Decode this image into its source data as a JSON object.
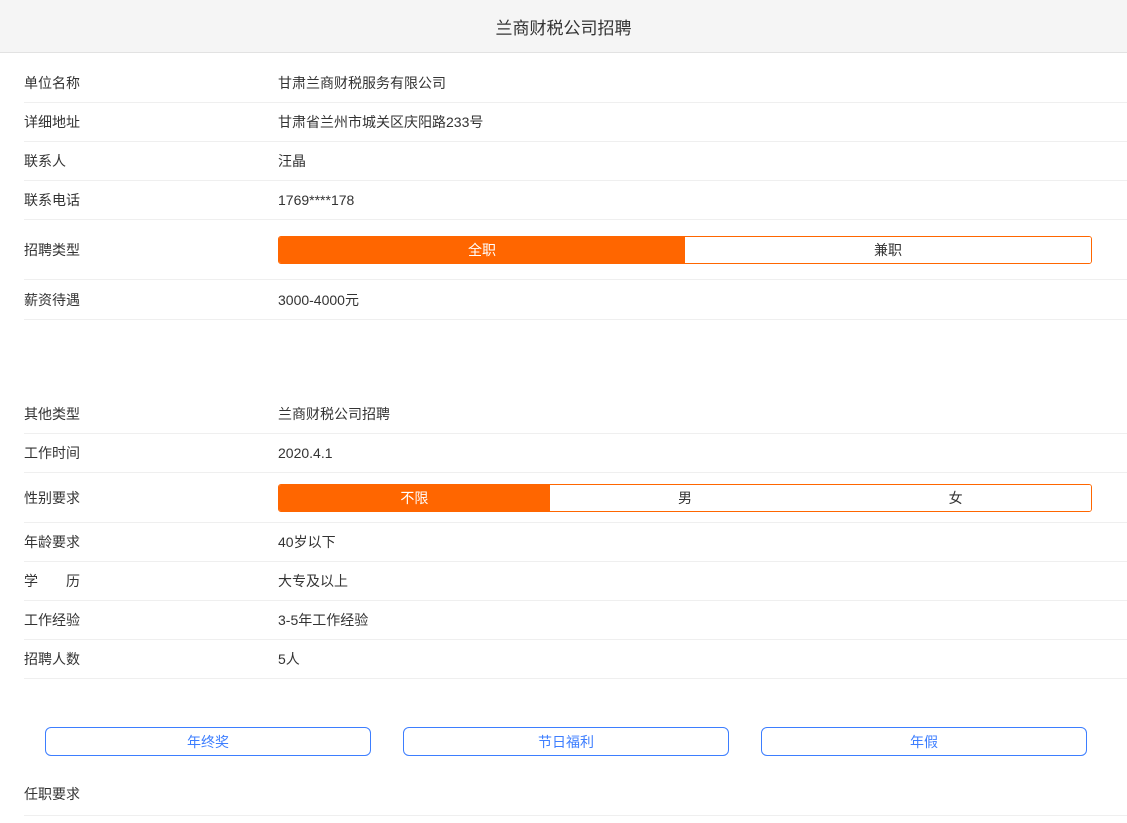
{
  "header": {
    "title": "兰商财税公司招聘"
  },
  "colors": {
    "accent_orange": "#FF6600",
    "accent_blue": "#3D7EFF"
  },
  "company": {
    "rows": [
      {
        "label": "单位名称",
        "value": "甘肃兰商财税服务有限公司"
      },
      {
        "label": "详细地址",
        "value": "甘肃省兰州市城关区庆阳路233号"
      },
      {
        "label": "联系人",
        "value": "汪晶"
      },
      {
        "label": "联系电话",
        "value": "1769****178"
      }
    ]
  },
  "job": {
    "type_row": {
      "label": "招聘类型",
      "options": [
        {
          "label": "全职",
          "selected": true
        },
        {
          "label": "兼职",
          "selected": false
        }
      ]
    },
    "salary_row": {
      "label": "薪资待遇",
      "value": "3000-4000元"
    }
  },
  "detail": {
    "other_type_row": {
      "label": "其他类型",
      "value": "兰商财税公司招聘"
    },
    "work_time_row": {
      "label": "工作时间",
      "value": "2020.4.1"
    },
    "gender_row": {
      "label": "性别要求",
      "options": [
        {
          "label": "不限",
          "selected": true
        },
        {
          "label": "男",
          "selected": false
        },
        {
          "label": "女",
          "selected": false
        }
      ]
    },
    "age_row": {
      "label": "年龄要求",
      "value": "40岁以下"
    },
    "education_row": {
      "label": "学　　历",
      "value": "大专及以上"
    },
    "experience_row": {
      "label": "工作经验",
      "value": "3-5年工作经验"
    },
    "headcount_row": {
      "label": "招聘人数",
      "value": "5人"
    }
  },
  "benefits": {
    "items": [
      "年终奖",
      "节日福利",
      "年假"
    ]
  },
  "requirements": {
    "label": "任职要求"
  }
}
